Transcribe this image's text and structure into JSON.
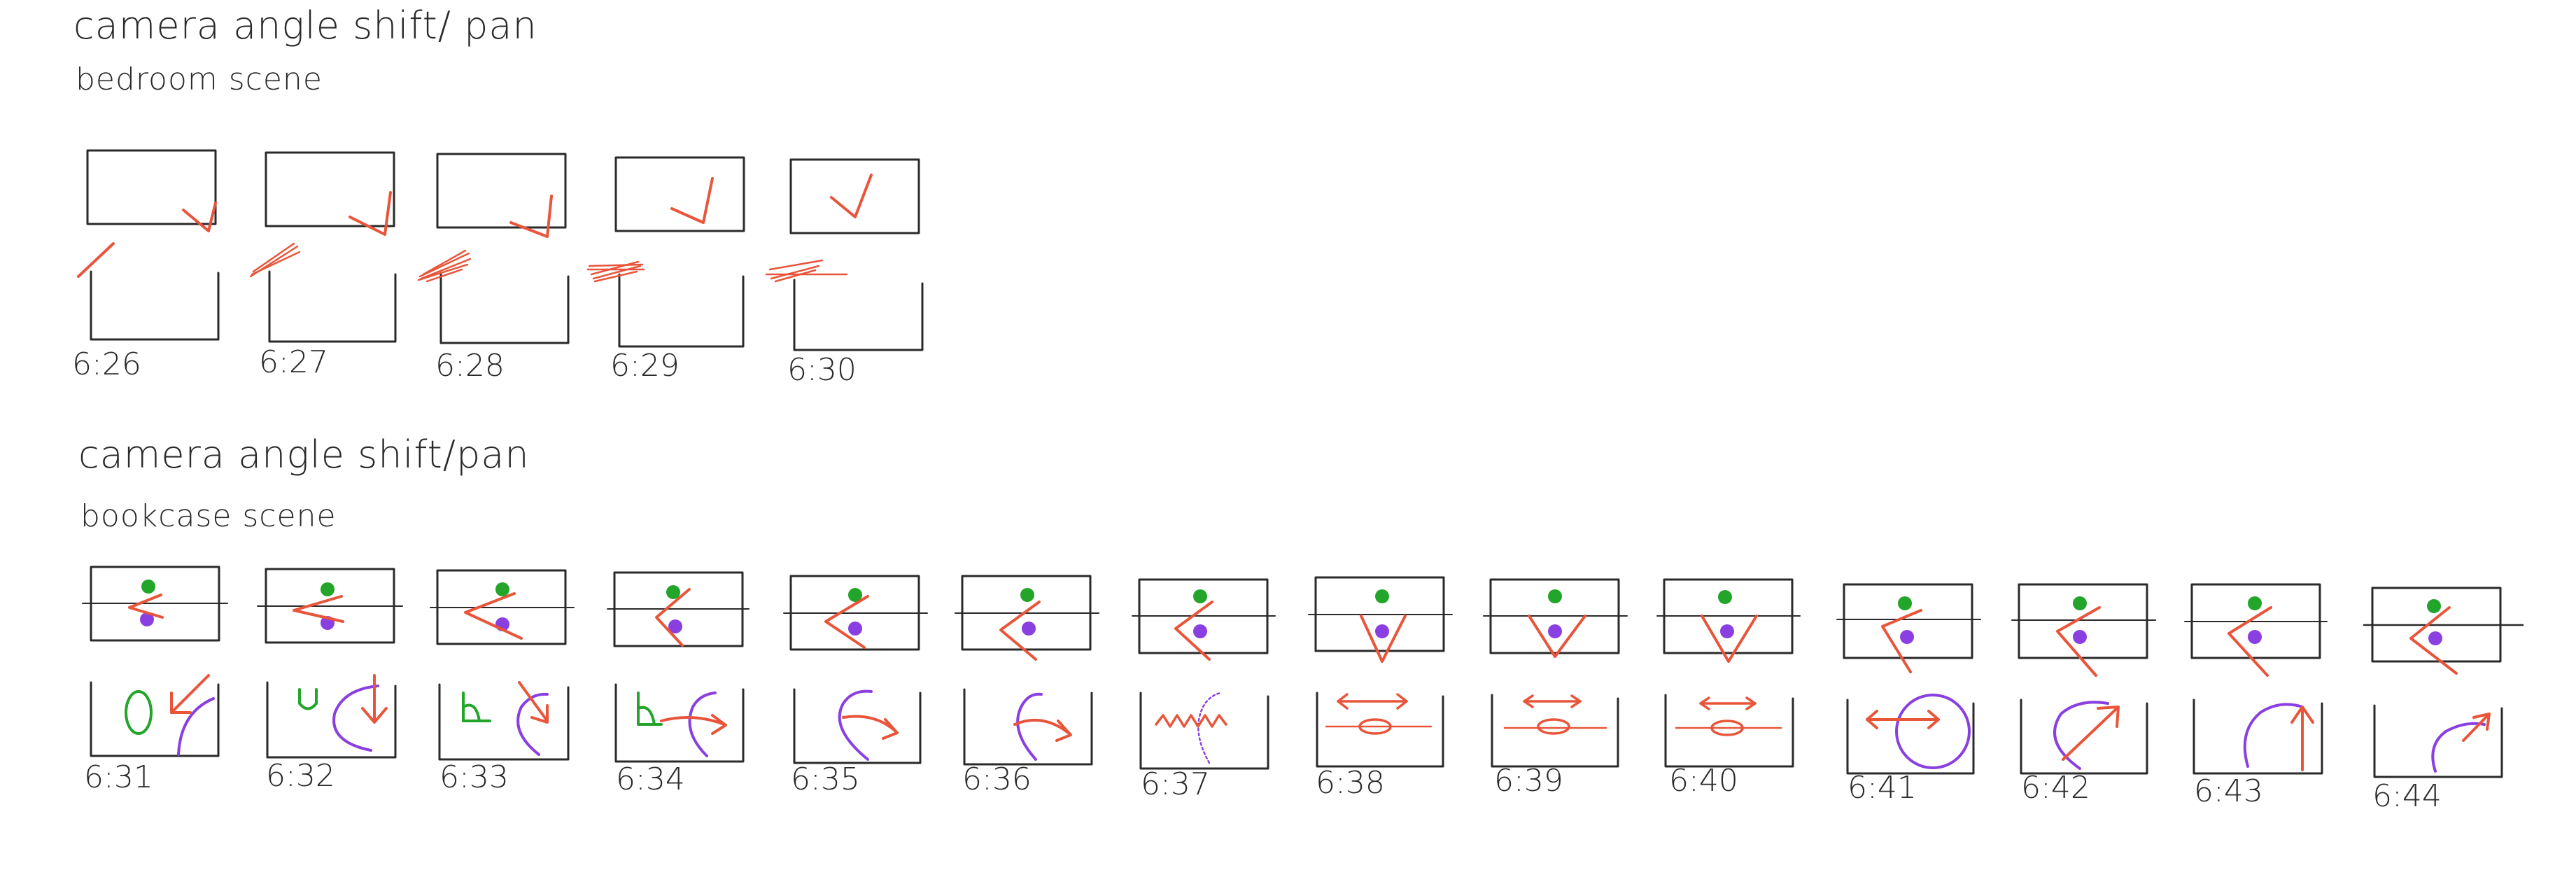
{
  "section1": {
    "title": "camera angle shift/ pan",
    "subtitle": "bedroom scene",
    "frames": [
      {
        "time": "6:26"
      },
      {
        "time": "6:27"
      },
      {
        "time": "6:28"
      },
      {
        "time": "6:29"
      },
      {
        "time": "6:30"
      }
    ]
  },
  "section2": {
    "title": "camera angle shift/pan",
    "subtitle": "bookcase scene",
    "frames": [
      {
        "time": "6:31"
      },
      {
        "time": "6:32"
      },
      {
        "time": "6:33"
      },
      {
        "time": "6:34"
      },
      {
        "time": "6:35"
      },
      {
        "time": "6:36"
      },
      {
        "time": "6:37"
      },
      {
        "time": "6:38"
      },
      {
        "time": "6:39"
      },
      {
        "time": "6:40"
      },
      {
        "time": "6:41"
      },
      {
        "time": "6:42"
      },
      {
        "time": "6:43"
      },
      {
        "time": "6:44"
      }
    ]
  },
  "colors": {
    "ink": "#2a2a2a",
    "stroke_red": "#e8553a",
    "dot_green": "#22a52a",
    "dot_purple": "#8a3fe0"
  }
}
